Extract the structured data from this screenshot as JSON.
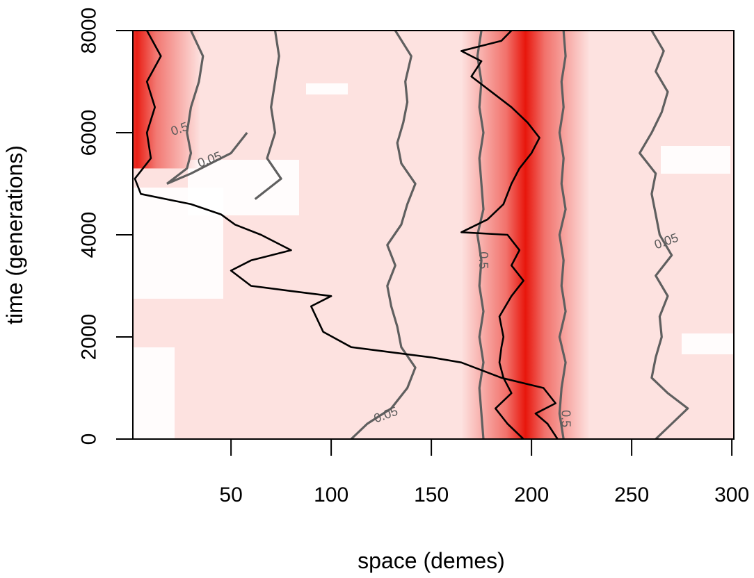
{
  "chart_data": {
    "type": "heatmap",
    "xlabel": "space (demes)",
    "ylabel": "time (generations)",
    "xlim": [
      1,
      301
    ],
    "ylim": [
      0,
      8000
    ],
    "x_ticks": [
      50,
      100,
      150,
      200,
      250,
      300
    ],
    "y_ticks": [
      0,
      2000,
      4000,
      6000,
      8000
    ],
    "colors": {
      "low": "#ffffff",
      "mid": "#fcd8d6",
      "high": "#e8160c",
      "contour": "#5f5f5f",
      "lineage": "#000000"
    },
    "heat_bands": [
      {
        "center": 197,
        "width": 20,
        "t_start": 0,
        "t_end": 8000,
        "intensity": 1.0
      },
      {
        "center": 3,
        "width": 20,
        "t_start": 5300,
        "t_end": 8000,
        "intensity": 0.95
      }
    ],
    "contour_levels": [
      0.05,
      0.5
    ],
    "contour_labels": [
      {
        "text": "0.05",
        "x": 40,
        "y": 5400
      },
      {
        "text": "0.05",
        "x": 128,
        "y": 400
      },
      {
        "text": "0.05",
        "x": 268,
        "y": 3800
      },
      {
        "text": "0.5",
        "x": 174,
        "y": 3500
      },
      {
        "text": "0.5",
        "x": 215,
        "y": 400
      },
      {
        "text": "0.5",
        "x": 25,
        "y": 6000
      }
    ],
    "contours": [
      {
        "level": 0.5,
        "points": [
          [
            176,
            0
          ],
          [
            175,
            500
          ],
          [
            174,
            1000
          ],
          [
            176,
            1500
          ],
          [
            174,
            2000
          ],
          [
            176,
            2500
          ],
          [
            174,
            3000
          ],
          [
            175,
            3500
          ],
          [
            173,
            4000
          ],
          [
            176,
            4500
          ],
          [
            175,
            5000
          ],
          [
            174,
            5500
          ],
          [
            176,
            6000
          ],
          [
            174,
            6500
          ],
          [
            175,
            7000
          ],
          [
            173,
            7500
          ],
          [
            175,
            8000
          ]
        ]
      },
      {
        "level": 0.5,
        "points": [
          [
            216,
            0
          ],
          [
            214,
            500
          ],
          [
            215,
            1000
          ],
          [
            217,
            1500
          ],
          [
            214,
            2000
          ],
          [
            217,
            2500
          ],
          [
            215,
            3000
          ],
          [
            216,
            3500
          ],
          [
            214,
            4000
          ],
          [
            217,
            4500
          ],
          [
            215,
            5000
          ],
          [
            216,
            5500
          ],
          [
            214,
            6000
          ],
          [
            216,
            6500
          ],
          [
            215,
            7000
          ],
          [
            217,
            7500
          ],
          [
            216,
            8000
          ]
        ]
      },
      {
        "level": 0.05,
        "points": [
          [
            110,
            0
          ],
          [
            118,
            300
          ],
          [
            130,
            600
          ],
          [
            138,
            1000
          ],
          [
            142,
            1400
          ],
          [
            135,
            1800
          ],
          [
            133,
            2200
          ],
          [
            130,
            2600
          ],
          [
            128,
            3000
          ],
          [
            132,
            3400
          ],
          [
            128,
            3800
          ],
          [
            135,
            4200
          ],
          [
            138,
            4600
          ],
          [
            142,
            5000
          ],
          [
            135,
            5400
          ],
          [
            133,
            5800
          ],
          [
            136,
            6200
          ],
          [
            138,
            6600
          ],
          [
            137,
            7000
          ],
          [
            140,
            7500
          ],
          [
            132,
            8000
          ]
        ]
      },
      {
        "level": 0.05,
        "points": [
          [
            262,
            0
          ],
          [
            270,
            300
          ],
          [
            278,
            600
          ],
          [
            268,
            900
          ],
          [
            260,
            1200
          ],
          [
            262,
            1600
          ],
          [
            265,
            2000
          ],
          [
            264,
            2400
          ],
          [
            268,
            2800
          ],
          [
            262,
            3200
          ],
          [
            270,
            3600
          ],
          [
            264,
            4000
          ],
          [
            262,
            4400
          ],
          [
            260,
            4800
          ],
          [
            262,
            5200
          ],
          [
            254,
            5600
          ],
          [
            260,
            6000
          ],
          [
            265,
            6400
          ],
          [
            268,
            6800
          ],
          [
            262,
            7200
          ],
          [
            266,
            7600
          ],
          [
            260,
            8000
          ]
        ]
      },
      {
        "level": 0.05,
        "points": [
          [
            62,
            4700
          ],
          [
            75,
            5100
          ],
          [
            68,
            5500
          ],
          [
            72,
            6000
          ],
          [
            70,
            6500
          ],
          [
            72,
            7000
          ],
          [
            74,
            7500
          ],
          [
            72,
            8000
          ]
        ]
      },
      {
        "level": 0.5,
        "points": [
          [
            18,
            5000
          ],
          [
            28,
            5300
          ],
          [
            30,
            5600
          ],
          [
            28,
            6000
          ],
          [
            30,
            6500
          ],
          [
            34,
            7000
          ],
          [
            36,
            7500
          ],
          [
            30,
            8000
          ]
        ]
      },
      {
        "level": 0.05,
        "points": [
          [
            18,
            5000
          ],
          [
            30,
            5200
          ],
          [
            40,
            5400
          ],
          [
            50,
            5600
          ],
          [
            58,
            6000
          ]
        ]
      }
    ],
    "lineages": [
      {
        "points": [
          [
            213,
            0
          ],
          [
            208,
            300
          ],
          [
            202,
            500
          ],
          [
            212,
            700
          ],
          [
            206,
            1000
          ],
          [
            185,
            1200
          ],
          [
            165,
            1500
          ],
          [
            150,
            1600
          ],
          [
            130,
            1700
          ],
          [
            110,
            1800
          ],
          [
            96,
            2100
          ],
          [
            90,
            2600
          ],
          [
            100,
            2800
          ],
          [
            80,
            2900
          ],
          [
            60,
            3000
          ],
          [
            50,
            3300
          ],
          [
            60,
            3500
          ],
          [
            80,
            3700
          ],
          [
            65,
            4000
          ],
          [
            52,
            4200
          ],
          [
            45,
            4400
          ],
          [
            30,
            4600
          ],
          [
            5,
            4800
          ],
          [
            2,
            5100
          ],
          [
            10,
            5500
          ],
          [
            8,
            6000
          ],
          [
            12,
            6500
          ],
          [
            8,
            7000
          ],
          [
            15,
            7500
          ],
          [
            8,
            8000
          ]
        ]
      },
      {
        "points": [
          [
            196,
            0
          ],
          [
            188,
            300
          ],
          [
            182,
            600
          ],
          [
            190,
            900
          ],
          [
            186,
            1200
          ],
          [
            184,
            1500
          ],
          [
            185,
            1800
          ],
          [
            186,
            2000
          ],
          [
            184,
            2400
          ],
          [
            190,
            2800
          ],
          [
            196,
            3100
          ],
          [
            190,
            3400
          ],
          [
            194,
            3700
          ],
          [
            188,
            4000
          ],
          [
            165,
            4050
          ],
          [
            178,
            4300
          ],
          [
            186,
            4600
          ],
          [
            190,
            5000
          ],
          [
            194,
            5300
          ],
          [
            200,
            5600
          ],
          [
            204,
            5900
          ],
          [
            198,
            6200
          ],
          [
            190,
            6500
          ],
          [
            180,
            6800
          ],
          [
            170,
            7100
          ],
          [
            175,
            7400
          ],
          [
            165,
            7600
          ],
          [
            185,
            7800
          ],
          [
            190,
            8000
          ]
        ]
      }
    ]
  }
}
